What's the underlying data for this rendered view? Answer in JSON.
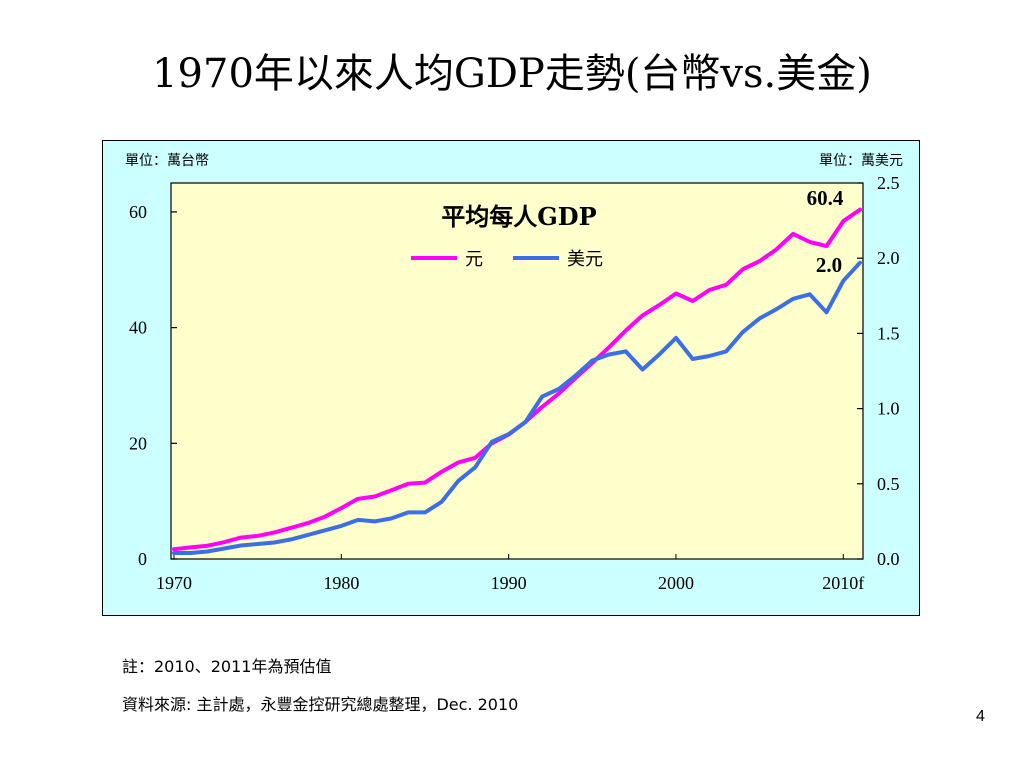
{
  "slide": {
    "title": "1970年以來人均GDP走勢(台幣vs.美金)",
    "note": "註：2010、2011年為預估值",
    "source": "資料來源: 主計處，永豐金控研究總處整理，Dec. 2010",
    "page_number": "4"
  },
  "chart_data": {
    "type": "line",
    "title": "平均每人GDP",
    "left_unit": "單位：萬台幣",
    "right_unit": "單位：萬美元",
    "x_tick_labels": [
      "1970",
      "1980",
      "1990",
      "2000",
      "2010f"
    ],
    "x_tick_values": [
      1970,
      1980,
      1990,
      2000,
      2010
    ],
    "y_left": {
      "range": [
        0,
        65
      ],
      "ticks": [
        0,
        20,
        40,
        60
      ]
    },
    "y_right": {
      "range": [
        0.0,
        2.5
      ],
      "ticks": [
        0.0,
        0.5,
        1.0,
        1.5,
        2.0,
        2.5
      ],
      "tick_labels": [
        "0.0",
        "0.5",
        "1.0",
        "1.5",
        "2.0",
        "2.5"
      ]
    },
    "plot_background": "#ffffcc",
    "frame_background": "#ccffff",
    "legend_placement": "top-center",
    "series": [
      {
        "name": "元",
        "axis": "left",
        "color": "#ff00ff",
        "x": [
          1970,
          1971,
          1972,
          1973,
          1974,
          1975,
          1976,
          1977,
          1978,
          1979,
          1980,
          1981,
          1982,
          1983,
          1984,
          1985,
          1986,
          1987,
          1988,
          1989,
          1990,
          1991,
          1992,
          1993,
          1994,
          1995,
          1996,
          1997,
          1998,
          1999,
          2000,
          2001,
          2002,
          2003,
          2004,
          2005,
          2006,
          2007,
          2008,
          2009,
          2010,
          2011
        ],
        "values": [
          1.7,
          2.0,
          2.3,
          2.9,
          3.7,
          4.0,
          4.6,
          5.4,
          6.2,
          7.3,
          8.8,
          10.4,
          10.8,
          11.9,
          13.0,
          13.2,
          15.1,
          16.7,
          17.5,
          20.0,
          21.5,
          23.7,
          26.3,
          28.6,
          31.3,
          33.9,
          36.6,
          39.5,
          42.1,
          43.9,
          45.9,
          44.6,
          46.5,
          47.4,
          50.1,
          51.5,
          53.5,
          56.2,
          54.8,
          54.1,
          58.4,
          60.4
        ],
        "end_label": "60.4"
      },
      {
        "name": "美元",
        "axis": "right",
        "color": "#3b6fe8",
        "x": [
          1970,
          1971,
          1972,
          1973,
          1974,
          1975,
          1976,
          1977,
          1978,
          1979,
          1980,
          1981,
          1982,
          1983,
          1984,
          1985,
          1986,
          1987,
          1988,
          1989,
          1990,
          1991,
          1992,
          1993,
          1994,
          1995,
          1996,
          1997,
          1998,
          1999,
          2000,
          2001,
          2002,
          2003,
          2004,
          2005,
          2006,
          2007,
          2008,
          2009,
          2010,
          2011
        ],
        "values": [
          0.04,
          0.04,
          0.05,
          0.07,
          0.09,
          0.1,
          0.11,
          0.13,
          0.16,
          0.19,
          0.22,
          0.26,
          0.25,
          0.27,
          0.31,
          0.31,
          0.38,
          0.52,
          0.61,
          0.78,
          0.83,
          0.91,
          1.08,
          1.13,
          1.22,
          1.32,
          1.36,
          1.38,
          1.26,
          1.36,
          1.47,
          1.33,
          1.35,
          1.38,
          1.51,
          1.6,
          1.66,
          1.73,
          1.76,
          1.64,
          1.85,
          1.97
        ],
        "end_label": "2.0"
      }
    ]
  }
}
